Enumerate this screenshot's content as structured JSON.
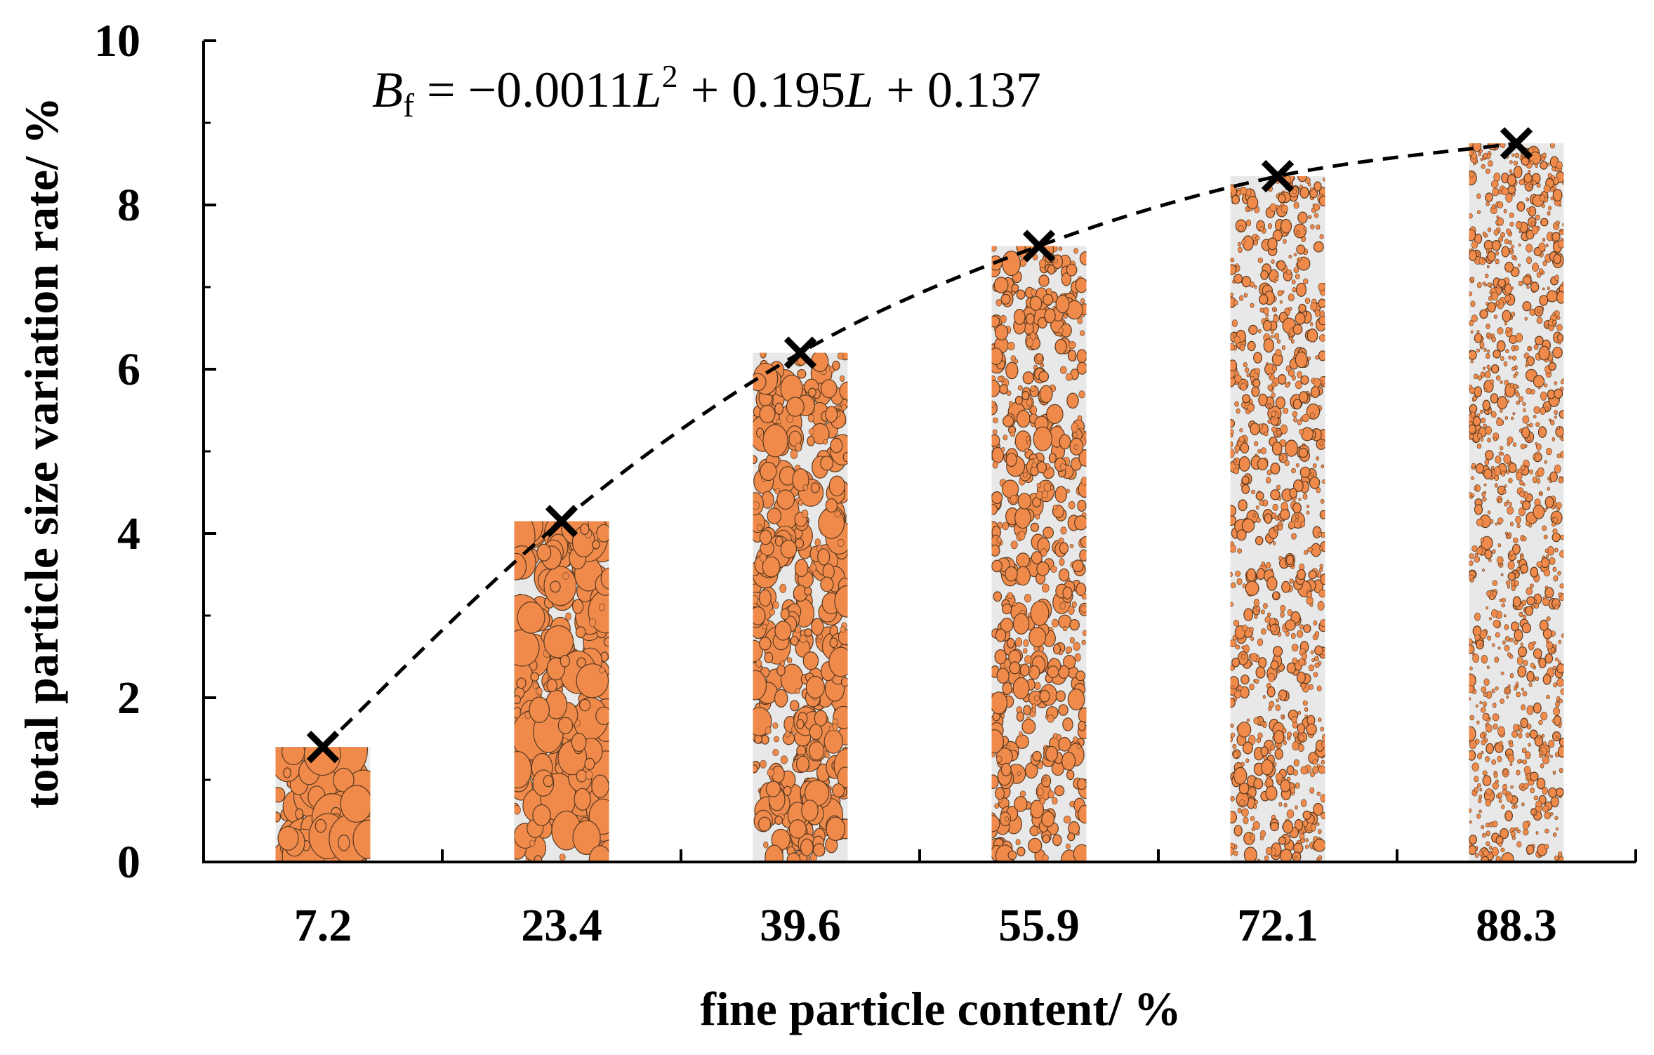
{
  "chart_data": {
    "type": "bar",
    "title": "",
    "categories": [
      "7.2",
      "23.4",
      "39.6",
      "55.9",
      "72.1",
      "88.3"
    ],
    "values": [
      1.4,
      4.15,
      6.2,
      7.5,
      8.35,
      8.75
    ],
    "xlabel": "fine particle content/ %",
    "ylabel": "total particle size variation rate/ %",
    "ylim": [
      0,
      10
    ],
    "yticks": [
      "0",
      "2",
      "4",
      "6",
      "8",
      "10"
    ],
    "grid": false,
    "bar_color": "#e8e8e8",
    "particle_color": "#f08a4b",
    "marker": "x",
    "fit": {
      "label_B": "B",
      "label_sub": "f",
      "text_part1": " = −0.0011",
      "text_L1": "L",
      "text_sup": "2",
      "text_part2": " + 0.195",
      "text_L2": "L",
      "text_part3": " + 0.137",
      "a": -0.0011,
      "b": 0.195,
      "c": 0.137,
      "style": "dashed"
    }
  }
}
